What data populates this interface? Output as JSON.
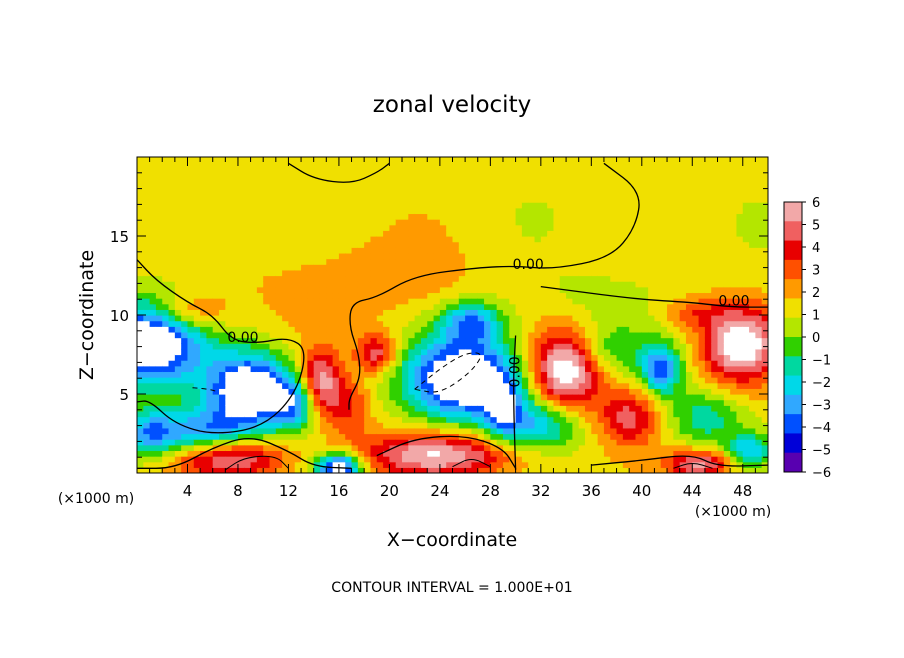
{
  "chart_data": {
    "type": "heatmap",
    "title": "zonal velocity",
    "xlabel": "X−coordinate",
    "ylabel": "Z−coordinate",
    "x_units": "(×1000 m)",
    "y_units": "(×1000 m)",
    "xlim": [
      0,
      50
    ],
    "ylim": [
      0,
      20
    ],
    "x_ticks": [
      4,
      8,
      12,
      16,
      20,
      24,
      28,
      32,
      36,
      40,
      44,
      48
    ],
    "y_ticks": [
      5,
      10,
      15
    ],
    "colorbar": {
      "ticks": [
        6,
        5,
        4,
        3,
        2,
        1,
        0,
        -1,
        -2,
        -3,
        -4,
        -5,
        -6
      ],
      "tick_labels": [
        "6",
        "5",
        "4",
        "3",
        "2",
        "1",
        "0",
        "−1",
        "−2",
        "−3",
        "−4",
        "−5",
        "−6"
      ],
      "colors": [
        "#f2a8a8",
        "#f06060",
        "#e80000",
        "#ff5000",
        "#ff9a00",
        "#f0e000",
        "#b4e600",
        "#30d000",
        "#00d8a0",
        "#00d8e8",
        "#30a8ff",
        "#0050ff",
        "#0000d8",
        "#5800b0"
      ]
    },
    "contour_label": "0.00",
    "footer": "CONTOUR INTERVAL = 1.000E+01",
    "blobs": [
      {
        "x": 0.8,
        "z": 8.2,
        "rx": 4.2,
        "rz": 2.6,
        "v": -9
      },
      {
        "x": 9.0,
        "z": 5.2,
        "rx": 3.4,
        "rz": 2.4,
        "v": -9
      },
      {
        "x": 7.5,
        "z": 1.0,
        "rx": 4.5,
        "rz": 1.3,
        "v": 5
      },
      {
        "x": 16.0,
        "z": 0.4,
        "rx": 1.8,
        "rz": 0.9,
        "v": -8
      },
      {
        "x": 24.0,
        "z": 1.2,
        "rx": 6.5,
        "rz": 1.4,
        "v": 5.5
      },
      {
        "x": 26.0,
        "z": 6.0,
        "rx": 4.5,
        "rz": 2.6,
        "v": -9
      },
      {
        "x": 26.5,
        "z": 9.6,
        "rx": 2.4,
        "rz": 1.3,
        "v": -5
      },
      {
        "x": 34.0,
        "z": 6.6,
        "rx": 2.8,
        "rz": 2.4,
        "v": 7
      },
      {
        "x": 41.5,
        "z": 6.6,
        "rx": 1.6,
        "rz": 1.6,
        "v": -5.5
      },
      {
        "x": 47.8,
        "z": 8.2,
        "rx": 3.0,
        "rz": 2.4,
        "v": 6.5
      },
      {
        "x": 44.6,
        "z": 0.6,
        "rx": 2.5,
        "rz": 0.9,
        "v": 5
      },
      {
        "x": 14.5,
        "z": 6.0,
        "rx": 1.6,
        "rz": 1.8,
        "v": 5
      },
      {
        "x": 19.0,
        "z": 7.6,
        "rx": 1.6,
        "rz": 1.2,
        "v": 4.5
      },
      {
        "x": 16.5,
        "z": 4.2,
        "rx": 2.0,
        "rz": 1.8,
        "v": 3
      },
      {
        "x": 5.0,
        "z": 2.6,
        "rx": 3.5,
        "rz": 1.4,
        "v": -5
      },
      {
        "x": 1.0,
        "z": 2.5,
        "rx": 2.2,
        "rz": 1.5,
        "v": -4.5
      },
      {
        "x": 32.0,
        "z": 3.0,
        "rx": 3.0,
        "rz": 1.6,
        "v": -4
      },
      {
        "x": 39.0,
        "z": 3.6,
        "rx": 2.4,
        "rz": 1.8,
        "v": 4
      },
      {
        "x": 37.0,
        "z": 7.8,
        "rx": 3.0,
        "rz": 1.6,
        "v": -2.5
      },
      {
        "x": 29.0,
        "z": 4.0,
        "rx": 1.6,
        "rz": 2.0,
        "v": -4
      },
      {
        "x": 12.5,
        "z": 4.5,
        "rx": 1.4,
        "rz": 1.6,
        "v": -4
      },
      {
        "x": 45.0,
        "z": 3.5,
        "rx": 3.0,
        "rz": 1.8,
        "v": -3
      },
      {
        "x": 48.5,
        "z": 1.5,
        "rx": 1.6,
        "rz": 1.0,
        "v": -4
      },
      {
        "x": 4.0,
        "z": 10.2,
        "rx": 3.0,
        "rz": 1.2,
        "v": 3
      },
      {
        "x": 44.0,
        "z": 10.2,
        "rx": 2.5,
        "rz": 1.0,
        "v": 2
      },
      {
        "x": 18.0,
        "z": 12.0,
        "rx": 10.0,
        "rz": 3.0,
        "v": 1.2
      },
      {
        "x": 36.0,
        "z": 11.0,
        "rx": 6.0,
        "rz": 2.0,
        "v": -0.8
      }
    ],
    "zero_contours": [
      [
        [
          0,
          13.5
        ],
        [
          1.5,
          12.2
        ],
        [
          4,
          10.8
        ],
        [
          6,
          10.0
        ],
        [
          7.5,
          8.4
        ],
        [
          9.5,
          8.2
        ],
        [
          12,
          8.6
        ],
        [
          13.5,
          7.8
        ],
        [
          12.6,
          5.0
        ],
        [
          10,
          2.9
        ],
        [
          6,
          2.4
        ],
        [
          3,
          3.1
        ],
        [
          1,
          4.6
        ],
        [
          0,
          4.5
        ]
      ],
      [
        [
          12,
          19.6
        ],
        [
          14,
          18.6
        ],
        [
          17,
          18.3
        ],
        [
          19,
          19.0
        ],
        [
          20,
          19.6
        ]
      ],
      [
        [
          37,
          19.6
        ],
        [
          40,
          17.8
        ],
        [
          39.5,
          15.5
        ],
        [
          37.5,
          13.6
        ],
        [
          33,
          12.9
        ],
        [
          30,
          13.1
        ],
        [
          27,
          13.0
        ],
        [
          22,
          12.5
        ],
        [
          19,
          11.1
        ],
        [
          17,
          10.8
        ],
        [
          16.8,
          9.3
        ],
        [
          17.6,
          7.5
        ],
        [
          17.7,
          6.0
        ],
        [
          16.8,
          4.7
        ],
        [
          16.8,
          4.0
        ]
      ],
      [
        [
          32,
          11.8
        ],
        [
          39.5,
          11.0
        ],
        [
          44,
          10.8
        ],
        [
          47,
          10.5
        ],
        [
          50,
          10.5
        ]
      ],
      [
        [
          0,
          0.3
        ],
        [
          3,
          0.3
        ],
        [
          6,
          1.6
        ],
        [
          9,
          2.4
        ],
        [
          12,
          1.4
        ],
        [
          14,
          0.4
        ],
        [
          17,
          0.3
        ]
      ],
      [
        [
          19,
          1.1
        ],
        [
          22,
          2.2
        ],
        [
          26,
          2.4
        ],
        [
          29,
          1.6
        ],
        [
          30,
          0.3
        ]
      ],
      [
        [
          30,
          8.7
        ],
        [
          29.8,
          5.6
        ],
        [
          30,
          0.2
        ]
      ],
      [
        [
          36,
          0.5
        ],
        [
          40,
          0.8
        ],
        [
          44,
          1.2
        ],
        [
          46,
          0.4
        ],
        [
          50,
          0.5
        ]
      ]
    ],
    "zero_label_positions": [
      [
        8.4,
        8.3
      ],
      [
        31.0,
        12.9
      ],
      [
        47.3,
        10.6
      ],
      [
        30.3,
        6.4
      ]
    ],
    "dashed_contours": [
      [
        [
          22,
          5.3
        ],
        [
          24,
          6.6
        ],
        [
          26,
          7.6
        ],
        [
          27.5,
          7.6
        ],
        [
          26.5,
          6.4
        ],
        [
          24,
          5.0
        ],
        [
          22,
          5.3
        ]
      ],
      [
        [
          4.4,
          5.4
        ],
        [
          5.8,
          5.3
        ],
        [
          6.5,
          5.1
        ]
      ]
    ],
    "solid_contours_extra": [
      [
        [
          7,
          0.2
        ],
        [
          8.5,
          1.0
        ],
        [
          11,
          1.1
        ],
        [
          12,
          0.3
        ]
      ],
      [
        [
          25,
          0.4
        ],
        [
          26.5,
          1.0
        ],
        [
          28,
          0.4
        ]
      ],
      [
        [
          42.5,
          0.3
        ],
        [
          44,
          0.7
        ],
        [
          45.6,
          0.3
        ]
      ]
    ]
  }
}
